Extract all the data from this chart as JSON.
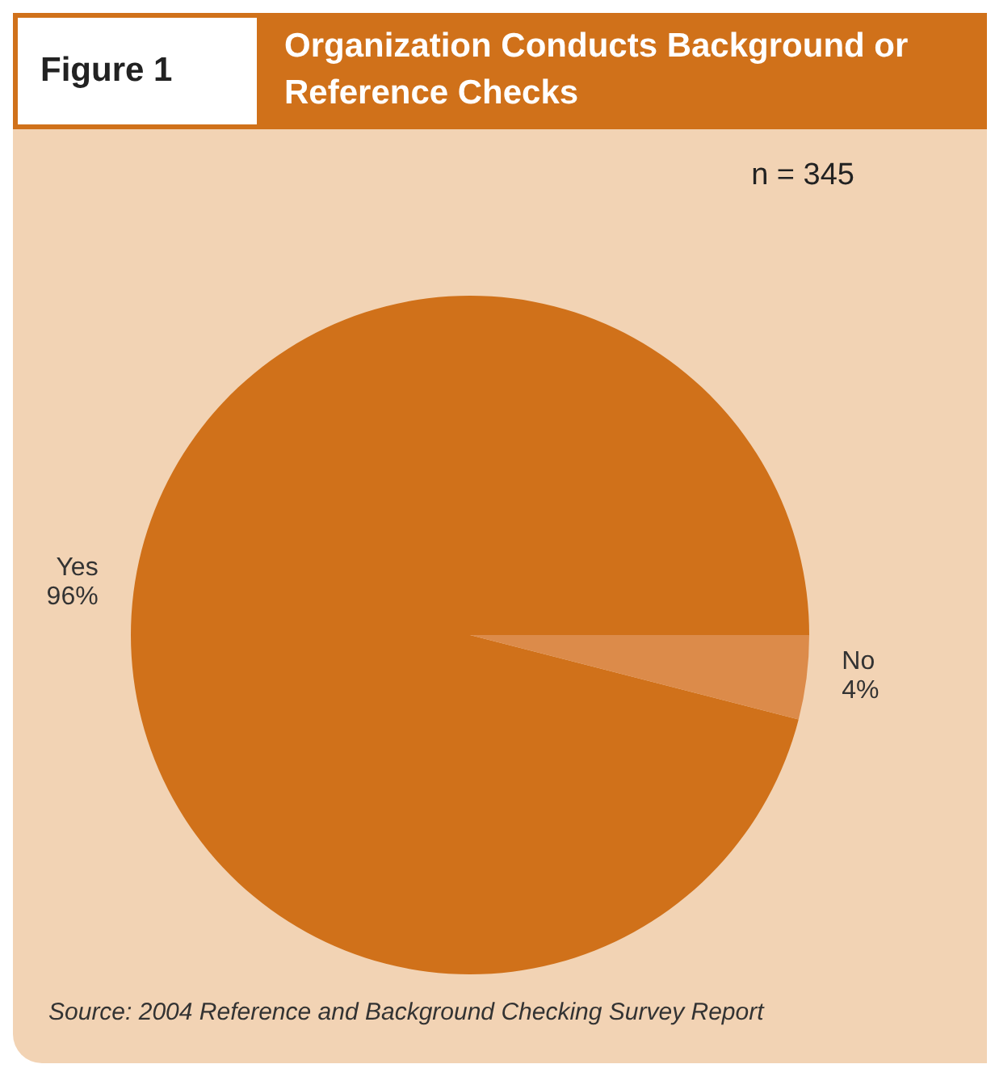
{
  "chart_data": {
    "type": "pie",
    "title": "Organization Conducts Background or Reference Checks",
    "annotations": [
      "Figure 1",
      "n = 345",
      "Source: 2004 Reference and Background Checking Survey Report"
    ],
    "categories": [
      "Yes",
      "No"
    ],
    "values": [
      96,
      4
    ],
    "value_labels": [
      "96%",
      "4%"
    ],
    "colors": [
      "#d0711a",
      "#dc8b4a"
    ]
  }
}
